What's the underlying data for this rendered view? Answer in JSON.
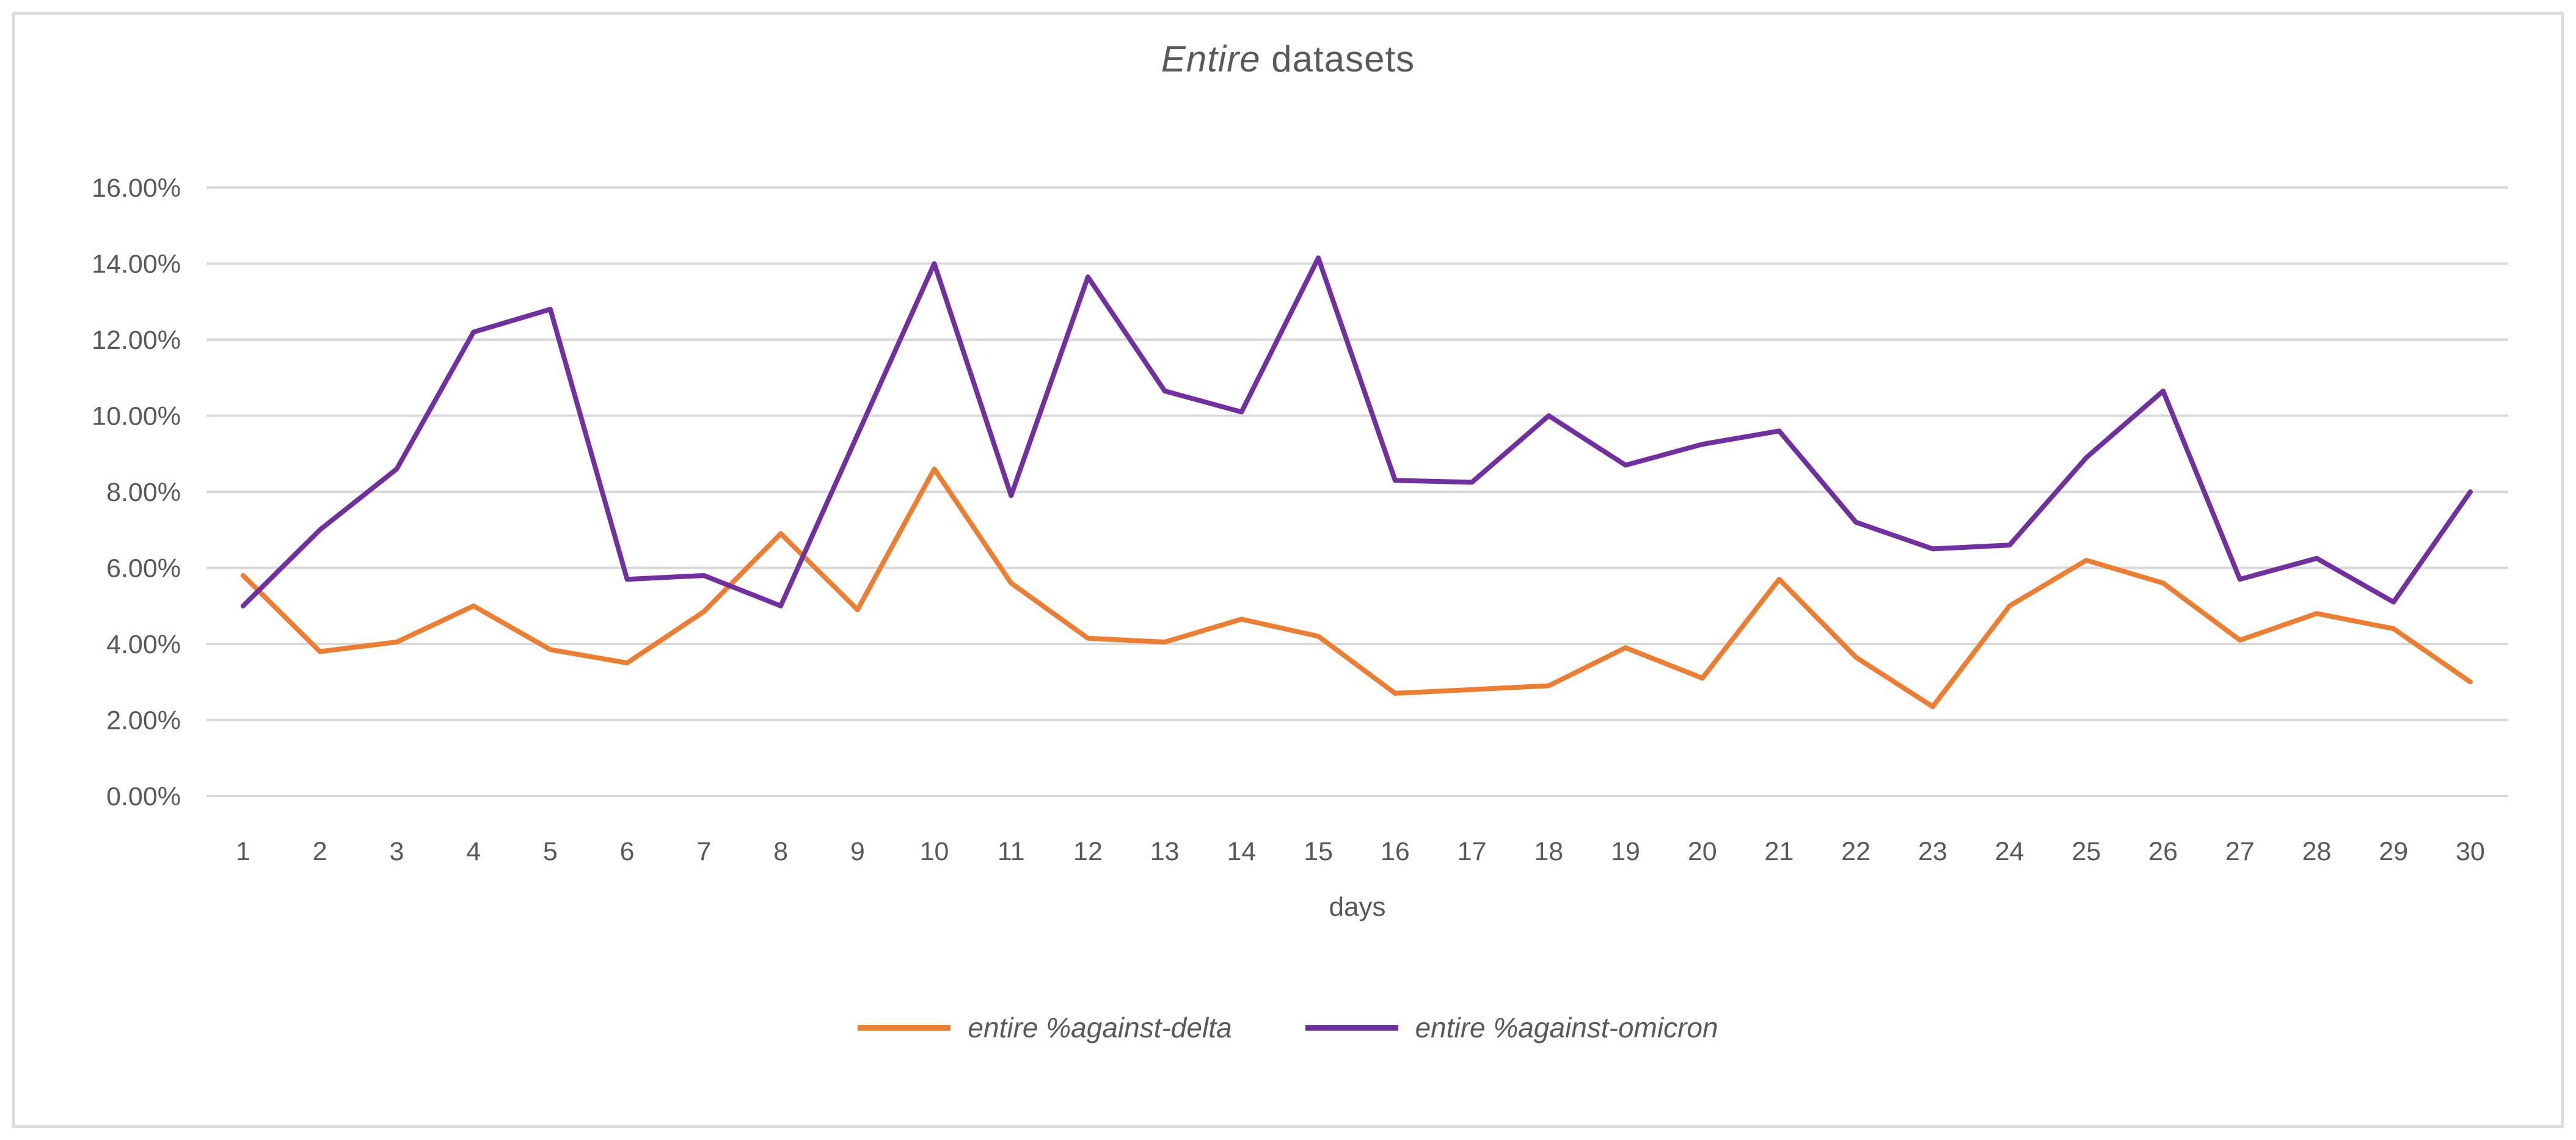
{
  "title": {
    "italic_part": "Entire",
    "regular_part": " datasets"
  },
  "x_axis": {
    "label": "days"
  },
  "colors": {
    "grid": "#D9D9D9",
    "text": "#595959",
    "frame_border": "#DADADA",
    "background": "#FFFFFF",
    "delta_series": "#ED7D31",
    "omicron_series": "#7030A0"
  },
  "chart_data": {
    "type": "line",
    "title": "Entire datasets",
    "xlabel": "days",
    "ylabel": "",
    "x": [
      1,
      2,
      3,
      4,
      5,
      6,
      7,
      8,
      9,
      10,
      11,
      12,
      13,
      14,
      15,
      16,
      17,
      18,
      19,
      20,
      21,
      22,
      23,
      24,
      25,
      26,
      27,
      28,
      29,
      30
    ],
    "ylim": [
      0,
      16
    ],
    "ytick_step": 2,
    "ytick_labels": [
      "0.00%",
      "2.00%",
      "4.00%",
      "6.00%",
      "8.00%",
      "10.00%",
      "12.00%",
      "14.00%",
      "16.00%"
    ],
    "grid": true,
    "legend_position": "bottom",
    "series": [
      {
        "name": "entire %against-delta",
        "color": "#ED7D31",
        "values": [
          5.8,
          3.8,
          4.05,
          5.0,
          3.85,
          3.5,
          4.85,
          6.9,
          4.9,
          8.6,
          5.6,
          4.15,
          4.05,
          4.65,
          4.2,
          2.7,
          2.8,
          2.9,
          3.9,
          3.1,
          5.7,
          3.65,
          2.35,
          5.0,
          6.2,
          5.6,
          4.1,
          4.8,
          4.4,
          3.0
        ]
      },
      {
        "name": "entire %against-omicron",
        "color": "#7030A0",
        "values": [
          5.0,
          7.0,
          8.6,
          12.2,
          12.8,
          5.7,
          5.8,
          5.0,
          9.5,
          14.0,
          7.9,
          13.65,
          10.65,
          10.1,
          14.15,
          8.3,
          8.25,
          10.0,
          8.7,
          9.25,
          9.6,
          7.2,
          6.5,
          6.6,
          8.9,
          10.65,
          5.7,
          6.25,
          5.1,
          8.0
        ]
      }
    ]
  }
}
